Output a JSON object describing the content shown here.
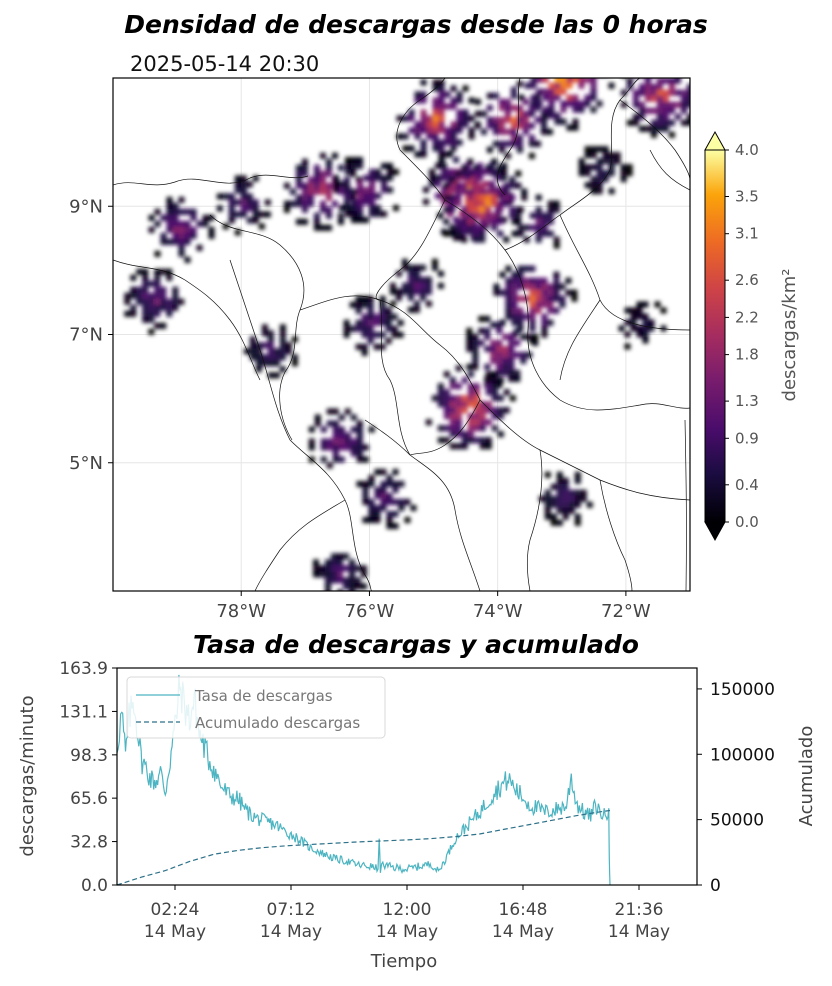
{
  "map": {
    "title": "Densidad de descargas desde las 0 horas",
    "timestamp": "2025-05-14 20:30",
    "x_ticks": [
      "78°W",
      "76°W",
      "74°W",
      "72°W"
    ],
    "y_ticks": [
      "9°N",
      "7°N",
      "5°N"
    ],
    "colorbar": {
      "label": "descargas/km²",
      "ticks": [
        "0.0",
        "0.4",
        "0.9",
        "1.3",
        "1.8",
        "2.2",
        "2.6",
        "3.1",
        "3.5",
        "4.0"
      ],
      "colormap": "inferno",
      "extend": "both"
    }
  },
  "chart_data": [
    {
      "type": "heatmap",
      "title": "Densidad de descargas desde las 0 horas",
      "subtitle": "2025-05-14 20:30",
      "x_ticks": [
        "78°W",
        "76°W",
        "74°W",
        "72°W"
      ],
      "y_ticks": [
        "9°N",
        "7°N",
        "5°N"
      ],
      "xlim": [
        -80,
        -71
      ],
      "ylim": [
        3,
        11
      ],
      "colorbar_label": "descargas/km²",
      "colorbar_range": [
        0.0,
        4.0
      ],
      "clusters": [
        {
          "lon": -79.4,
          "lat": 7.6,
          "density": 1.6
        },
        {
          "lon": -79.0,
          "lat": 8.7,
          "density": 1.8
        },
        {
          "lon": -78.0,
          "lat": 9.1,
          "density": 1.2
        },
        {
          "lon": -76.8,
          "lat": 9.3,
          "density": 2.6
        },
        {
          "lon": -76.1,
          "lat": 9.3,
          "density": 2.0
        },
        {
          "lon": -75.0,
          "lat": 10.4,
          "density": 3.0
        },
        {
          "lon": -74.5,
          "lat": 9.2,
          "density": 3.8
        },
        {
          "lon": -74.3,
          "lat": 9.1,
          "density": 3.6
        },
        {
          "lon": -73.8,
          "lat": 10.4,
          "density": 2.8
        },
        {
          "lon": -73.0,
          "lat": 11.0,
          "density": 3.9
        },
        {
          "lon": -71.5,
          "lat": 10.8,
          "density": 3.0
        },
        {
          "lon": -73.5,
          "lat": 7.6,
          "density": 2.9
        },
        {
          "lon": -74.0,
          "lat": 6.8,
          "density": 2.2
        },
        {
          "lon": -74.5,
          "lat": 5.9,
          "density": 3.4
        },
        {
          "lon": -76.5,
          "lat": 5.4,
          "density": 1.8
        },
        {
          "lon": -76.0,
          "lat": 7.2,
          "density": 1.4
        },
        {
          "lon": -77.6,
          "lat": 6.8,
          "density": 1.0
        },
        {
          "lon": -75.8,
          "lat": 4.5,
          "density": 1.4
        },
        {
          "lon": -73.0,
          "lat": 4.5,
          "density": 1.0
        },
        {
          "lon": -75.3,
          "lat": 7.8,
          "density": 1.2
        },
        {
          "lon": -73.4,
          "lat": 8.8,
          "density": 1.2
        },
        {
          "lon": -72.4,
          "lat": 9.6,
          "density": 0.8
        },
        {
          "lon": -71.8,
          "lat": 7.2,
          "density": 0.6
        },
        {
          "lon": -76.5,
          "lat": 3.3,
          "density": 1.2
        }
      ]
    },
    {
      "type": "line",
      "title": "Tasa de descargas y acumulado",
      "xlabel": "Tiempo",
      "ylabel": "descargas/minuto",
      "ylabel_right": "Acumulado",
      "x_ticks": [
        "02:24\n14 May",
        "07:12\n14 May",
        "12:00\n14 May",
        "16:48\n14 May",
        "21:36\n14 May"
      ],
      "x_tick_hours": [
        2.4,
        7.2,
        12.0,
        16.8,
        21.6
      ],
      "xlim_hours": [
        0,
        24
      ],
      "y_ticks": [
        "0.0",
        "32.8",
        "65.6",
        "98.3",
        "131.1",
        "163.9"
      ],
      "ylim": [
        0,
        163.9
      ],
      "y_ticks_right": [
        "0",
        "50000",
        "100000",
        "150000"
      ],
      "ylim_right": [
        0,
        166000
      ],
      "legend_position": "top-left",
      "series": [
        {
          "name": "Tasa de descargas",
          "axis": "left",
          "color": "#4db5c2",
          "style": "solid",
          "x_hours": [
            0.0,
            0.1,
            0.2,
            0.35,
            0.5,
            0.7,
            0.9,
            1.0,
            1.2,
            1.4,
            1.6,
            1.8,
            2.0,
            2.2,
            2.4,
            2.6,
            2.8,
            3.0,
            3.2,
            3.4,
            3.6,
            3.8,
            4.0,
            4.3,
            4.6,
            5.0,
            5.4,
            5.8,
            6.2,
            6.6,
            7.0,
            7.5,
            8.0,
            8.5,
            9.0,
            9.5,
            10.0,
            10.5,
            10.8,
            10.85,
            10.9,
            11.0,
            11.5,
            12.0,
            12.5,
            13.0,
            13.3,
            13.6,
            14.0,
            14.5,
            15.0,
            15.3,
            15.6,
            15.9,
            16.2,
            16.5,
            16.8,
            17.1,
            17.4,
            17.7,
            18.0,
            18.3,
            18.6,
            18.8,
            19.0,
            19.3,
            19.6,
            19.8,
            20.0,
            20.2,
            20.35,
            20.37,
            20.4
          ],
          "values": [
            105,
            118,
            130,
            98,
            125,
            140,
            110,
            95,
            88,
            80,
            78,
            85,
            70,
            95,
            120,
            150,
            135,
            125,
            140,
            115,
            105,
            95,
            88,
            75,
            68,
            65,
            55,
            50,
            48,
            45,
            40,
            35,
            28,
            24,
            20,
            18,
            15,
            14,
            12,
            35,
            12,
            15,
            13,
            12,
            14,
            16,
            10,
            20,
            35,
            45,
            55,
            62,
            70,
            75,
            80,
            72,
            66,
            60,
            58,
            55,
            56,
            58,
            60,
            82,
            62,
            55,
            52,
            60,
            55,
            52,
            58,
            20,
            0
          ]
        },
        {
          "name": "Acumulado descargas",
          "axis": "right",
          "color": "#2d7189",
          "style": "dashed",
          "x_hours": [
            0.0,
            1.0,
            2.0,
            3.0,
            4.0,
            5.0,
            6.0,
            7.0,
            8.0,
            9.0,
            10.0,
            11.0,
            12.0,
            13.0,
            14.0,
            15.0,
            16.0,
            17.0,
            18.0,
            19.0,
            20.0,
            20.4
          ],
          "values": [
            0,
            6000,
            11000,
            18000,
            23500,
            26500,
            28500,
            30000,
            31000,
            32000,
            33000,
            33700,
            34500,
            35500,
            37000,
            39000,
            42500,
            46000,
            49500,
            53000,
            56000,
            57000
          ]
        }
      ]
    }
  ],
  "timeseries": {
    "title": "Tasa de descargas y acumulado",
    "ylabel": "descargas/minuto",
    "ylabel_right": "Acumulado",
    "xlabel": "Tiempo",
    "legend": {
      "rate_label": "Tasa de descargas",
      "cum_label": "Acumulado descargas"
    }
  }
}
